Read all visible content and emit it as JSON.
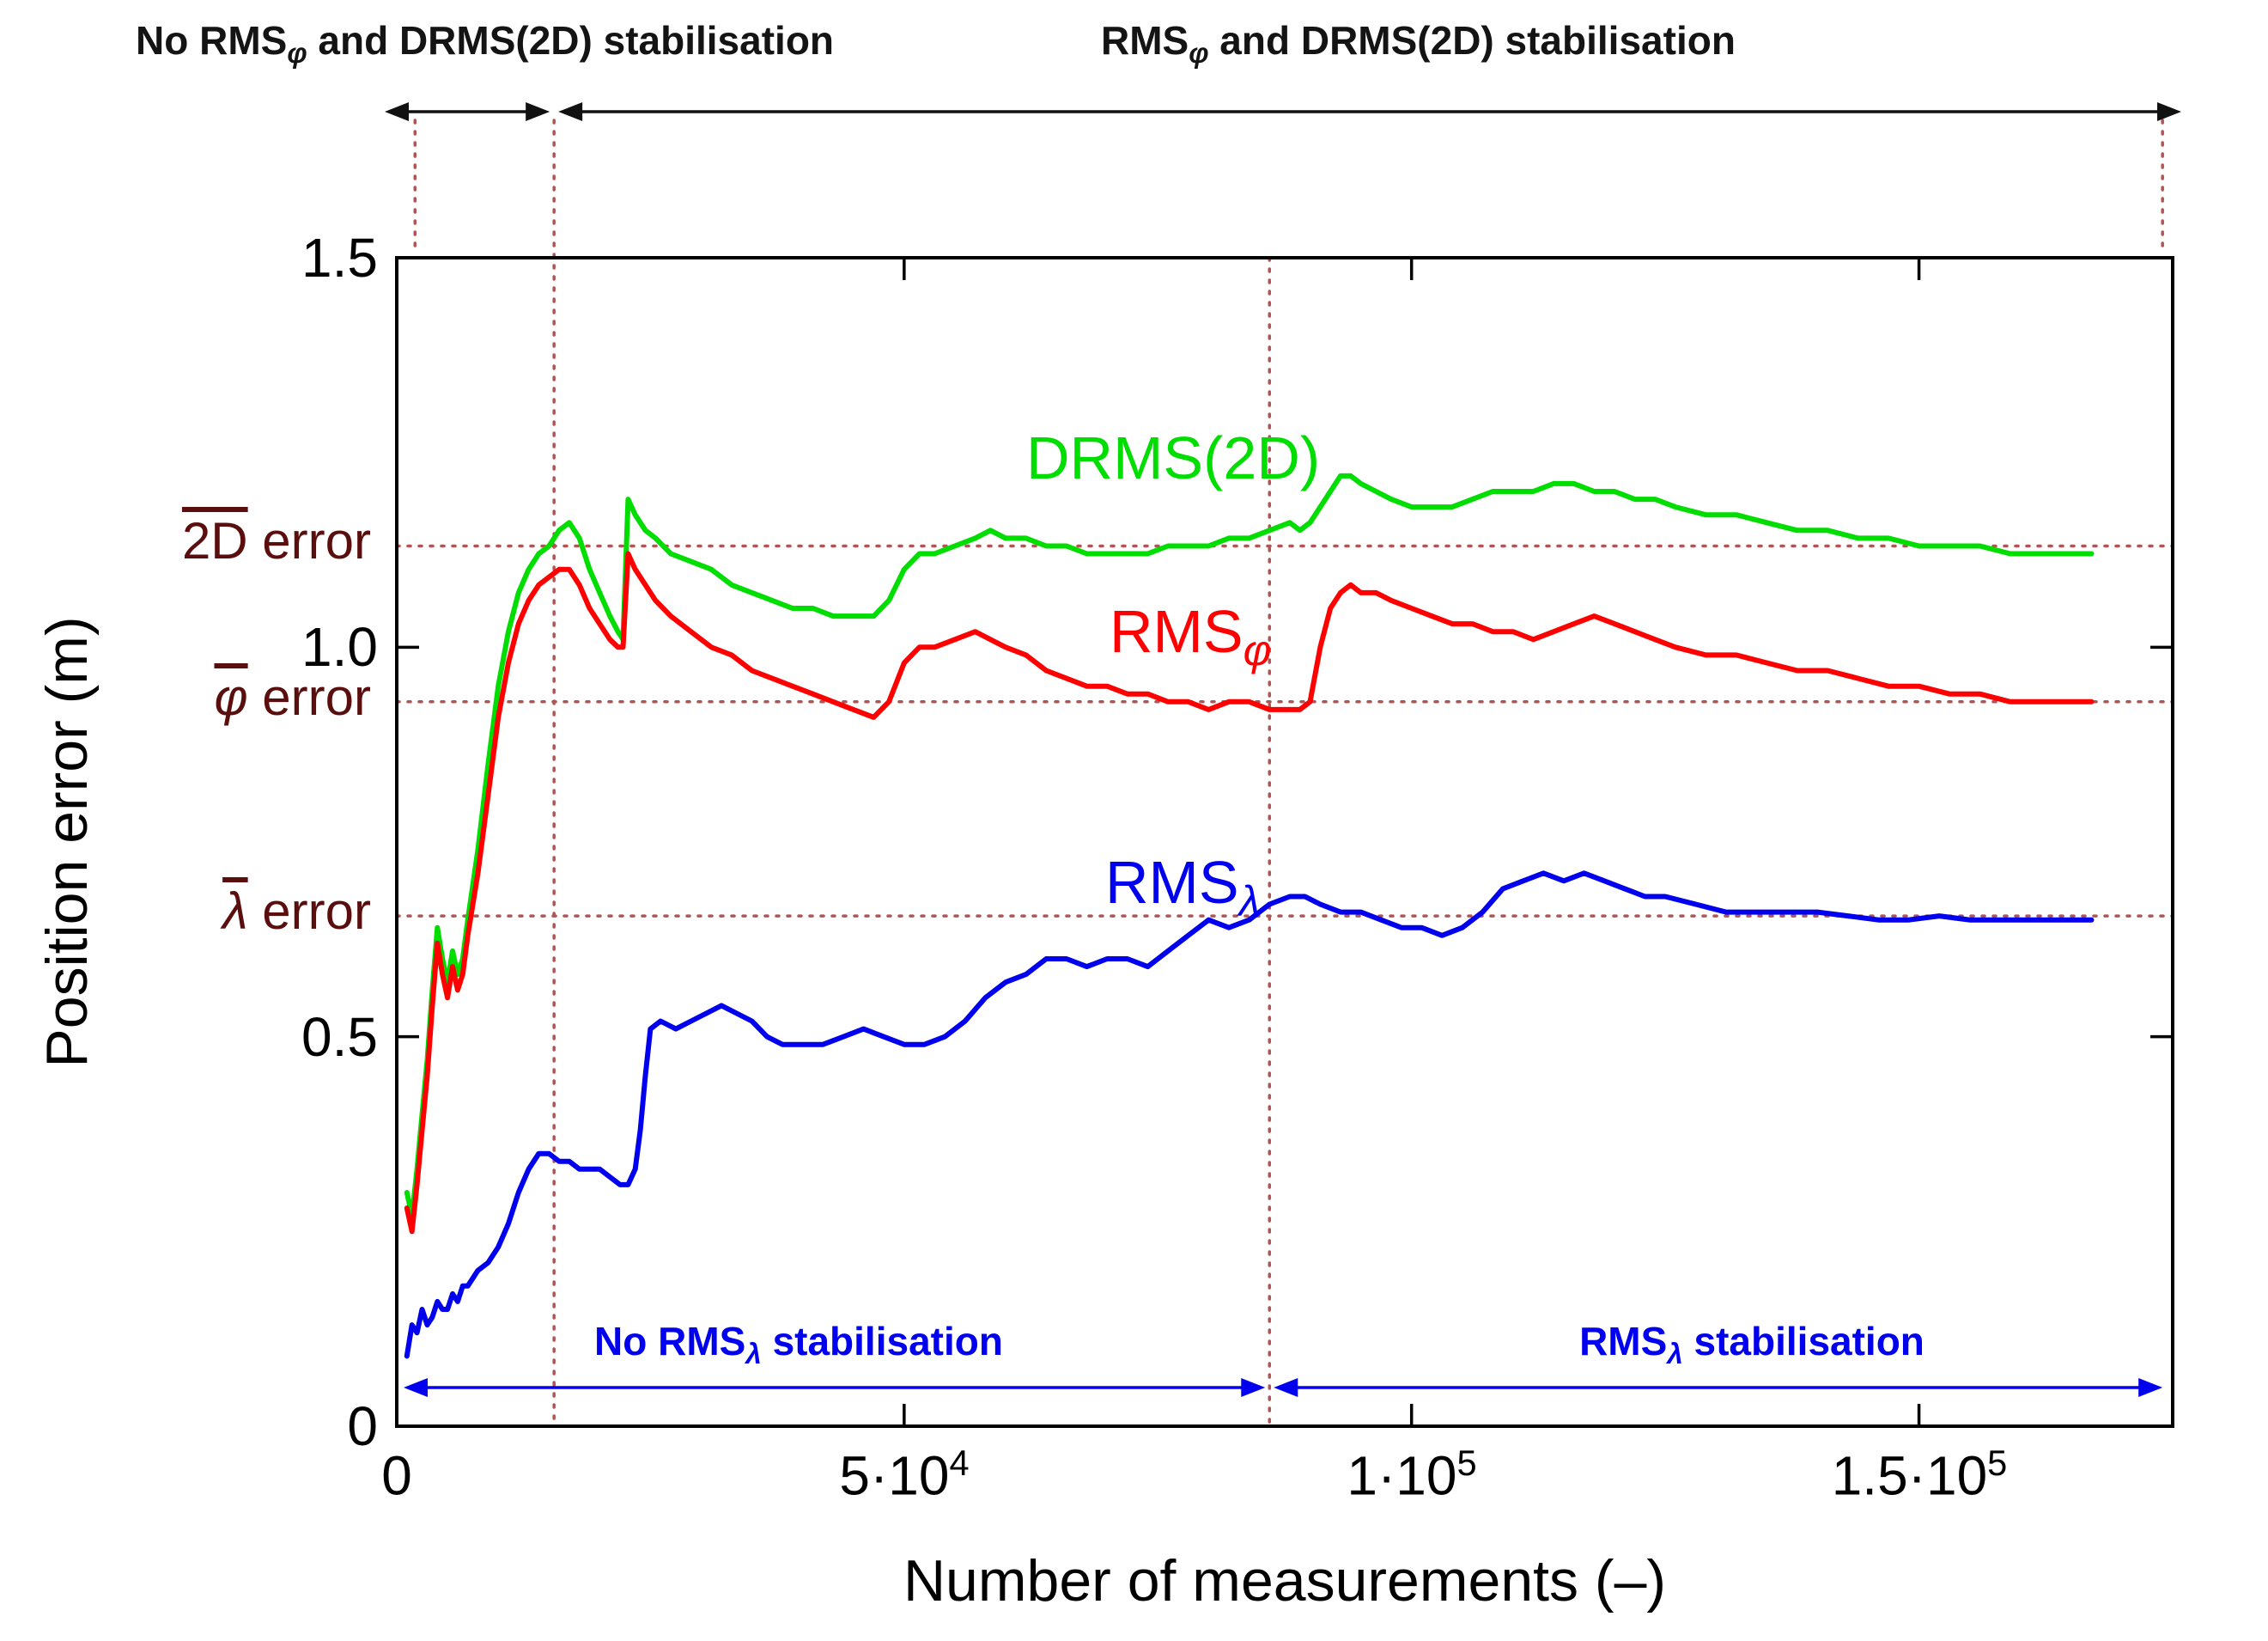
{
  "page": {
    "background": "#ffffff"
  },
  "annotations": {
    "top_left": {
      "pre": "No RMS",
      "sub": "φ",
      "post": " and DRMS(2D) stabilisation"
    },
    "top_right": {
      "pre": "RMS",
      "sub": "φ",
      "post": " and DRMS(2D) stabilisation"
    },
    "bottom_left": {
      "pre": "No RMS",
      "sub": "λ",
      "post": " stabilisation"
    },
    "bottom_right": {
      "pre": "RMS",
      "sub": "λ",
      "post": " stabilisation"
    }
  },
  "chart_data": {
    "type": "line",
    "title": "",
    "xlabel": "Number of measurements (–)",
    "ylabel": "Position error (m)",
    "xlim": [
      0,
      175000
    ],
    "ylim": [
      0,
      1.5
    ],
    "grid": "off",
    "x_ticks": [
      0,
      50000,
      100000,
      150000
    ],
    "x_tick_labels": [
      {
        "base": "0",
        "sup": ""
      },
      {
        "base": "5·10",
        "sup": "4"
      },
      {
        "base": "1·10",
        "sup": "5"
      },
      {
        "base": "1.5·10",
        "sup": "5"
      }
    ],
    "y_ticks": [
      0,
      0.5,
      1.0,
      1.5
    ],
    "y_tick_labels": [
      "0",
      "0.5",
      "1.0",
      "1.5"
    ],
    "reference_lines": [
      {
        "over": "2D",
        "rest": " error",
        "value": 1.13
      },
      {
        "over": "φ",
        "rest": " error",
        "value": 0.93
      },
      {
        "over": "λ",
        "rest": " error",
        "value": 0.655
      }
    ],
    "vertical_markers": {
      "phi_drms_boundary": 15500,
      "lambda_boundary": 86000,
      "left_edge": 1800,
      "right_edge": 174000
    },
    "colors": {
      "dotted_line": "#b05555",
      "ref_label": "#5a0e0e",
      "top_arrow": "#111111",
      "bottom_arrow": "#0000ee",
      "drms_green": "#00dd00",
      "rms_phi_red": "#ff0000",
      "rms_lambda_blue": "#0000ee"
    },
    "series": [
      {
        "name": "DRMS(2D)",
        "label_pre": "DRMS(2D)",
        "label_sub": "",
        "color": "#00dd00",
        "x": [
          1000,
          1500,
          2000,
          2500,
          3000,
          3500,
          4000,
          4500,
          5000,
          5500,
          6000,
          6500,
          7000,
          8000,
          9000,
          10000,
          11000,
          12000,
          13000,
          14000,
          15000,
          16000,
          17000,
          18000,
          19000,
          20000,
          21000,
          21800,
          22300,
          22800,
          23500,
          24500,
          25500,
          27000,
          29000,
          31000,
          33000,
          35000,
          37000,
          39000,
          41000,
          43000,
          45000,
          47000,
          48500,
          50000,
          51500,
          53000,
          55000,
          57000,
          58500,
          60000,
          62000,
          64000,
          66000,
          68000,
          70000,
          72000,
          74000,
          76000,
          78000,
          80000,
          82000,
          84000,
          86000,
          88000,
          89000,
          90000,
          91000,
          92000,
          93000,
          94000,
          95000,
          96500,
          98000,
          100000,
          102000,
          104000,
          106000,
          108000,
          110000,
          112000,
          114000,
          116000,
          118000,
          120000,
          122000,
          124000,
          126000,
          129000,
          132000,
          135000,
          138000,
          141000,
          144000,
          147000,
          150000,
          153000,
          156000,
          159000,
          162000,
          165000,
          167000
        ],
        "y": [
          0.3,
          0.27,
          0.33,
          0.4,
          0.47,
          0.56,
          0.64,
          0.6,
          0.57,
          0.61,
          0.58,
          0.6,
          0.65,
          0.74,
          0.85,
          0.95,
          1.02,
          1.07,
          1.1,
          1.12,
          1.13,
          1.15,
          1.16,
          1.14,
          1.1,
          1.07,
          1.04,
          1.02,
          1.01,
          1.19,
          1.17,
          1.15,
          1.14,
          1.12,
          1.11,
          1.1,
          1.08,
          1.07,
          1.06,
          1.05,
          1.05,
          1.04,
          1.04,
          1.04,
          1.06,
          1.1,
          1.12,
          1.12,
          1.13,
          1.14,
          1.15,
          1.14,
          1.14,
          1.13,
          1.13,
          1.12,
          1.12,
          1.12,
          1.12,
          1.13,
          1.13,
          1.13,
          1.14,
          1.14,
          1.15,
          1.16,
          1.15,
          1.16,
          1.18,
          1.2,
          1.22,
          1.22,
          1.21,
          1.2,
          1.19,
          1.18,
          1.18,
          1.18,
          1.19,
          1.2,
          1.2,
          1.2,
          1.21,
          1.21,
          1.2,
          1.2,
          1.19,
          1.19,
          1.18,
          1.17,
          1.17,
          1.16,
          1.15,
          1.15,
          1.14,
          1.14,
          1.13,
          1.13,
          1.13,
          1.12,
          1.12,
          1.12,
          1.12
        ]
      },
      {
        "name": "RMS_phi",
        "label_pre": "RMS",
        "label_sub": "φ",
        "color": "#ff0000",
        "x": [
          1000,
          1500,
          2000,
          2500,
          3000,
          3500,
          4000,
          4500,
          5000,
          5500,
          6000,
          6500,
          7000,
          8000,
          9000,
          10000,
          11000,
          12000,
          13000,
          14000,
          15000,
          16000,
          17000,
          18000,
          19000,
          20000,
          21000,
          21800,
          22300,
          22800,
          23500,
          24500,
          25500,
          27000,
          29000,
          31000,
          33000,
          35000,
          37000,
          39000,
          41000,
          43000,
          45000,
          47000,
          48500,
          50000,
          51500,
          53000,
          55000,
          57000,
          58500,
          60000,
          62000,
          64000,
          66000,
          68000,
          70000,
          72000,
          74000,
          76000,
          78000,
          80000,
          82000,
          84000,
          86000,
          88000,
          89000,
          90000,
          91000,
          92000,
          93000,
          94000,
          95000,
          96500,
          98000,
          100000,
          102000,
          104000,
          106000,
          108000,
          110000,
          112000,
          114000,
          116000,
          118000,
          120000,
          122000,
          124000,
          126000,
          129000,
          132000,
          135000,
          138000,
          141000,
          144000,
          147000,
          150000,
          153000,
          156000,
          159000,
          162000,
          165000,
          167000
        ],
        "y": [
          0.28,
          0.25,
          0.31,
          0.38,
          0.45,
          0.54,
          0.62,
          0.58,
          0.55,
          0.59,
          0.56,
          0.58,
          0.63,
          0.71,
          0.81,
          0.91,
          0.98,
          1.03,
          1.06,
          1.08,
          1.09,
          1.1,
          1.1,
          1.08,
          1.05,
          1.03,
          1.01,
          1.0,
          1.0,
          1.12,
          1.1,
          1.08,
          1.06,
          1.04,
          1.02,
          1.0,
          0.99,
          0.97,
          0.96,
          0.95,
          0.94,
          0.93,
          0.92,
          0.91,
          0.93,
          0.98,
          1.0,
          1.0,
          1.01,
          1.02,
          1.01,
          1.0,
          0.99,
          0.97,
          0.96,
          0.95,
          0.95,
          0.94,
          0.94,
          0.93,
          0.93,
          0.92,
          0.93,
          0.93,
          0.92,
          0.92,
          0.92,
          0.93,
          1.0,
          1.05,
          1.07,
          1.08,
          1.07,
          1.07,
          1.06,
          1.05,
          1.04,
          1.03,
          1.03,
          1.02,
          1.02,
          1.01,
          1.02,
          1.03,
          1.04,
          1.03,
          1.02,
          1.01,
          1.0,
          0.99,
          0.99,
          0.98,
          0.97,
          0.97,
          0.96,
          0.95,
          0.95,
          0.94,
          0.94,
          0.93,
          0.93,
          0.93,
          0.93
        ]
      },
      {
        "name": "RMS_lambda",
        "label_pre": "RMS",
        "label_sub": "λ",
        "color": "#0000ee",
        "x": [
          1000,
          1500,
          2000,
          2500,
          3000,
          3500,
          4000,
          4500,
          5000,
          5500,
          6000,
          6500,
          7000,
          8000,
          9000,
          10000,
          11000,
          12000,
          13000,
          14000,
          15000,
          16000,
          17000,
          18000,
          19000,
          20000,
          21000,
          22000,
          22800,
          23500,
          24000,
          24500,
          25000,
          26000,
          27500,
          29000,
          30500,
          32000,
          33500,
          35000,
          36500,
          38000,
          40000,
          42000,
          44000,
          46000,
          48000,
          50000,
          52000,
          54000,
          56000,
          58000,
          60000,
          62000,
          64000,
          66000,
          68000,
          70000,
          72000,
          74000,
          76000,
          78000,
          80000,
          82000,
          84000,
          86000,
          88000,
          89500,
          91000,
          93000,
          95000,
          97000,
          99000,
          101000,
          103000,
          105000,
          107000,
          109000,
          111000,
          113000,
          115000,
          117000,
          119000,
          121000,
          123000,
          125000,
          128000,
          131000,
          134000,
          137000,
          140000,
          143000,
          146000,
          149000,
          152000,
          155000,
          158000,
          161000,
          164000,
          167000
        ],
        "y": [
          0.09,
          0.13,
          0.12,
          0.15,
          0.13,
          0.14,
          0.16,
          0.15,
          0.15,
          0.17,
          0.16,
          0.18,
          0.18,
          0.2,
          0.21,
          0.23,
          0.26,
          0.3,
          0.33,
          0.35,
          0.35,
          0.34,
          0.34,
          0.33,
          0.33,
          0.33,
          0.32,
          0.31,
          0.31,
          0.33,
          0.38,
          0.45,
          0.51,
          0.52,
          0.51,
          0.52,
          0.53,
          0.54,
          0.53,
          0.52,
          0.5,
          0.49,
          0.49,
          0.49,
          0.5,
          0.51,
          0.5,
          0.49,
          0.49,
          0.5,
          0.52,
          0.55,
          0.57,
          0.58,
          0.6,
          0.6,
          0.59,
          0.6,
          0.6,
          0.59,
          0.61,
          0.63,
          0.65,
          0.64,
          0.65,
          0.67,
          0.68,
          0.68,
          0.67,
          0.66,
          0.66,
          0.65,
          0.64,
          0.64,
          0.63,
          0.64,
          0.66,
          0.69,
          0.7,
          0.71,
          0.7,
          0.71,
          0.7,
          0.69,
          0.68,
          0.68,
          0.67,
          0.66,
          0.66,
          0.66,
          0.66,
          0.655,
          0.65,
          0.65,
          0.655,
          0.65,
          0.65,
          0.65,
          0.65,
          0.65
        ]
      }
    ]
  }
}
